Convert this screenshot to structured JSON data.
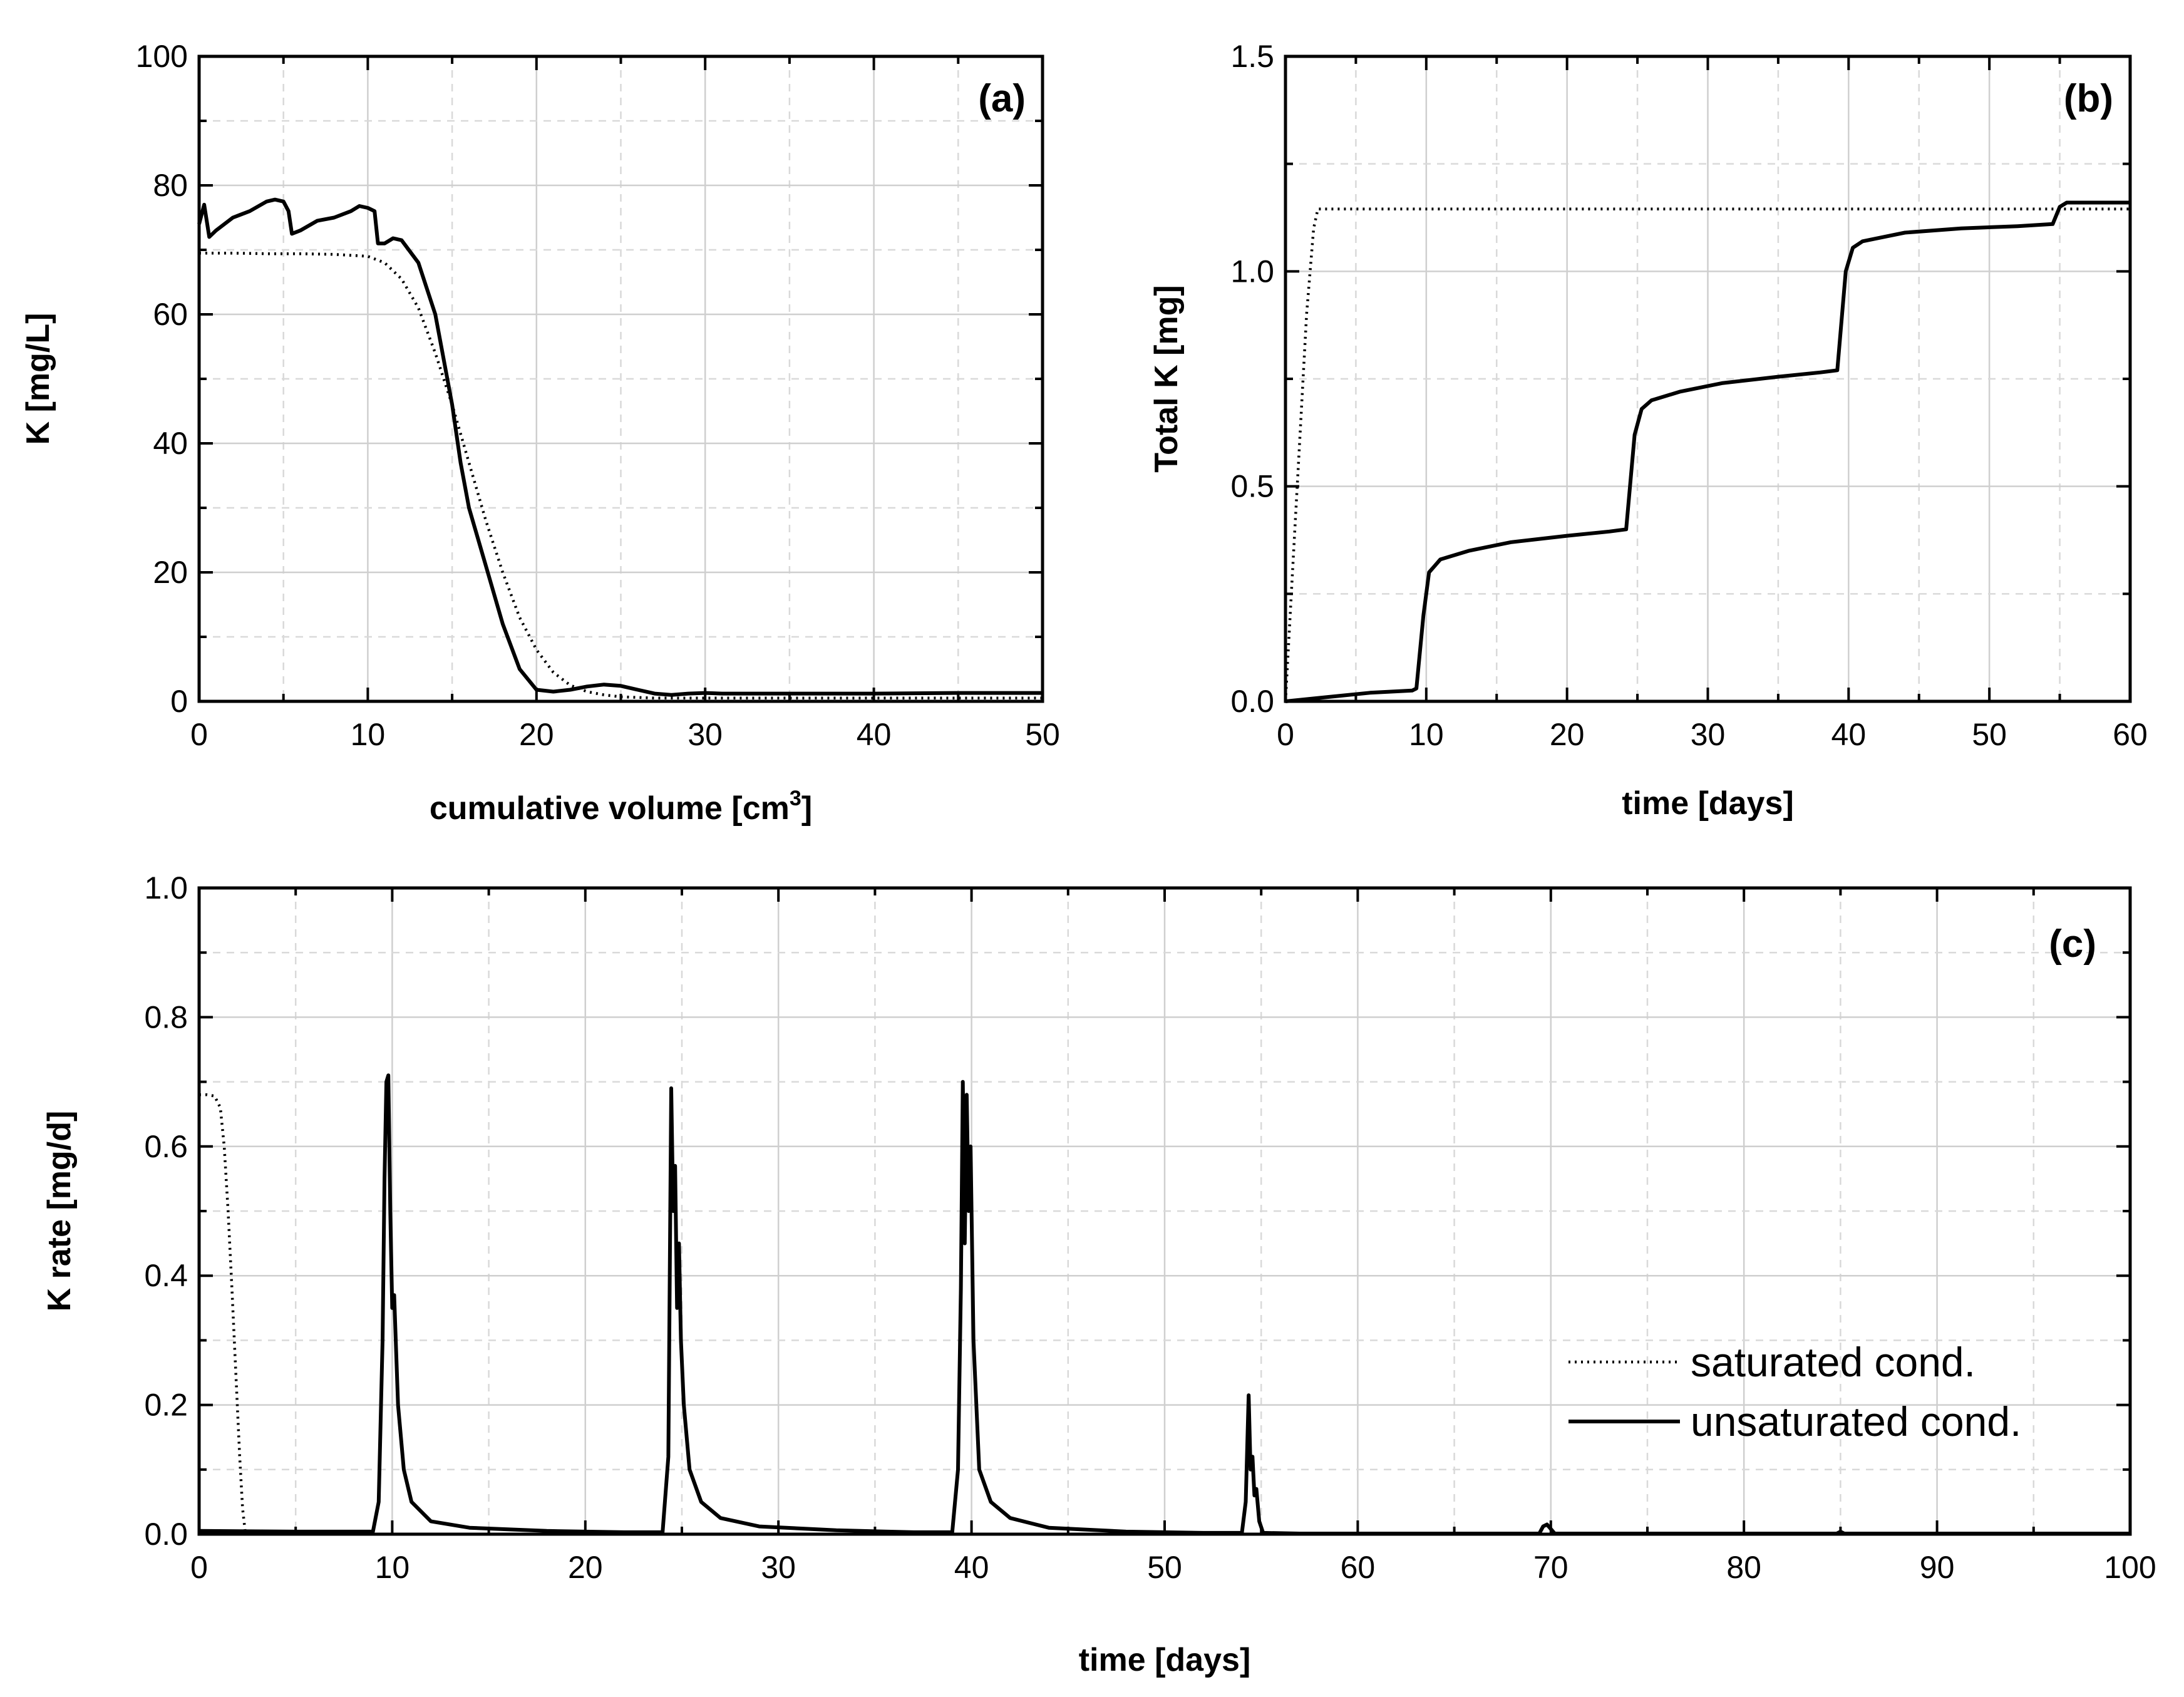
{
  "chart_data": [
    {
      "id": "a",
      "type": "line",
      "panel_label": "(a)",
      "title": "",
      "xlabel": "cumulative volume [cm",
      "xlabel_superscript": "3",
      "xlabel_suffix": "]",
      "ylabel": "K [mg/L]",
      "xlim": [
        0,
        50
      ],
      "ylim": [
        0,
        100
      ],
      "xticks": [
        0,
        10,
        20,
        30,
        40,
        50
      ],
      "yticks": [
        0,
        20,
        40,
        60,
        80,
        100
      ],
      "grid": true,
      "series": [
        {
          "name": "saturated cond.",
          "style": "dotted",
          "x": [
            0,
            2,
            4,
            6,
            8,
            10,
            11,
            12,
            13,
            14,
            15,
            16,
            17,
            18,
            19,
            20,
            21,
            22,
            23,
            24,
            25,
            26,
            27,
            28,
            30,
            35,
            40,
            45,
            50
          ],
          "y": [
            69.5,
            69.5,
            69.4,
            69.4,
            69.3,
            69,
            68,
            65.5,
            61,
            54,
            46,
            37,
            28,
            20,
            13,
            8,
            4.5,
            2.5,
            1.5,
            1,
            0.7,
            0.6,
            0.5,
            0.5,
            0.5,
            0.5,
            0.5,
            0.5,
            0.5
          ]
        },
        {
          "name": "unsaturated cond.",
          "style": "solid",
          "x": [
            0,
            0.3,
            0.6,
            1,
            2,
            3,
            4,
            4.5,
            5,
            5.3,
            5.5,
            6,
            7,
            8,
            9,
            9.5,
            10,
            10.4,
            10.6,
            11,
            11.5,
            12,
            13,
            14,
            15,
            15.5,
            16,
            17,
            18,
            19,
            20,
            21,
            22,
            23,
            24,
            25,
            26,
            27,
            28,
            29,
            30,
            31,
            35,
            40,
            45,
            50
          ],
          "y": [
            74,
            77,
            72,
            73,
            75,
            76,
            77.5,
            77.8,
            77.5,
            76,
            72.5,
            73,
            74.5,
            75,
            76,
            76.8,
            76.5,
            76,
            71,
            71,
            71.8,
            71.5,
            68,
            60,
            46,
            37,
            30,
            21,
            12,
            5,
            1.8,
            1.5,
            1.8,
            2.3,
            2.6,
            2.4,
            1.8,
            1.2,
            1,
            1.2,
            1.3,
            1.2,
            1.2,
            1.2,
            1.3,
            1.3
          ]
        }
      ]
    },
    {
      "id": "b",
      "type": "line",
      "panel_label": "(b)",
      "title": "",
      "xlabel": "time [days]",
      "ylabel": "Total K [mg]",
      "xlim": [
        0,
        60
      ],
      "ylim": [
        0,
        1.5
      ],
      "xticks": [
        0,
        10,
        20,
        30,
        40,
        50,
        60
      ],
      "yticks": [
        0.0,
        0.5,
        1.0,
        1.5
      ],
      "ytick_labels": [
        "0.0",
        "0.5",
        "1.0",
        "1.5"
      ],
      "grid": true,
      "series": [
        {
          "name": "saturated cond.",
          "style": "dotted",
          "x": [
            0,
            0.5,
            1,
            1.5,
            2,
            2.3,
            3,
            10,
            20,
            30,
            40,
            50,
            60
          ],
          "y": [
            0,
            0.3,
            0.6,
            0.9,
            1.1,
            1.145,
            1.145,
            1.145,
            1.145,
            1.145,
            1.145,
            1.145,
            1.145
          ]
        },
        {
          "name": "unsaturated cond.",
          "style": "solid",
          "x": [
            0,
            3,
            6,
            9,
            9.3,
            9.8,
            10.2,
            11,
            13,
            16,
            20,
            23,
            24.2,
            24.8,
            25.3,
            26,
            28,
            31,
            35,
            38,
            39.2,
            39.8,
            40.3,
            41,
            44,
            48,
            52,
            54.5,
            55,
            55.5,
            57,
            60
          ],
          "y": [
            0,
            0.01,
            0.02,
            0.025,
            0.03,
            0.2,
            0.3,
            0.33,
            0.35,
            0.37,
            0.385,
            0.395,
            0.4,
            0.62,
            0.68,
            0.7,
            0.72,
            0.74,
            0.755,
            0.765,
            0.77,
            1.0,
            1.055,
            1.07,
            1.09,
            1.1,
            1.105,
            1.11,
            1.15,
            1.16,
            1.16,
            1.16
          ]
        }
      ]
    },
    {
      "id": "c",
      "type": "line",
      "panel_label": "(c)",
      "title": "",
      "xlabel": "time [days]",
      "ylabel": "K rate [mg/d]",
      "xlim": [
        0,
        100
      ],
      "ylim": [
        0,
        1.0
      ],
      "xticks": [
        0,
        10,
        20,
        30,
        40,
        50,
        60,
        70,
        80,
        90,
        100
      ],
      "yticks": [
        0.0,
        0.2,
        0.4,
        0.6,
        0.8,
        1.0
      ],
      "ytick_labels": [
        "0.0",
        "0.2",
        "0.4",
        "0.6",
        "0.8",
        "1.0"
      ],
      "grid": true,
      "legend": {
        "position": "lower-right",
        "entries": [
          "saturated cond.",
          "unsaturated cond."
        ]
      },
      "series": [
        {
          "name": "saturated cond.",
          "style": "dotted",
          "x": [
            0,
            0.4,
            0.8,
            1.1,
            1.3,
            1.5,
            1.7,
            1.9,
            2.1,
            2.25,
            2.4,
            3,
            100
          ],
          "y": [
            0.68,
            0.68,
            0.678,
            0.66,
            0.6,
            0.5,
            0.38,
            0.25,
            0.12,
            0.04,
            0,
            0,
            0
          ]
        },
        {
          "name": "unsaturated cond.",
          "style": "solid",
          "x": [
            0,
            5,
            9,
            9.3,
            9.5,
            9.6,
            9.7,
            9.8,
            9.9,
            10.0,
            10.1,
            10.3,
            10.6,
            11,
            12,
            14,
            18,
            22,
            24,
            24.3,
            24.45,
            24.55,
            24.65,
            24.75,
            24.85,
            24.95,
            25.1,
            25.4,
            26,
            27,
            29,
            33,
            37,
            39,
            39.3,
            39.45,
            39.55,
            39.65,
            39.75,
            39.85,
            39.95,
            40.1,
            40.4,
            41,
            42,
            44,
            48,
            52,
            54,
            54.2,
            54.35,
            54.45,
            54.55,
            54.65,
            54.75,
            54.9,
            55.1,
            57,
            62,
            69.4,
            69.6,
            69.8,
            70,
            70.2,
            75,
            84.8,
            85,
            85.2,
            90,
            100
          ],
          "y": [
            0.005,
            0.004,
            0.004,
            0.05,
            0.3,
            0.55,
            0.7,
            0.71,
            0.5,
            0.35,
            0.37,
            0.2,
            0.1,
            0.05,
            0.02,
            0.01,
            0.005,
            0.003,
            0.003,
            0.12,
            0.69,
            0.5,
            0.57,
            0.35,
            0.45,
            0.3,
            0.2,
            0.1,
            0.05,
            0.025,
            0.012,
            0.006,
            0.003,
            0.003,
            0.1,
            0.38,
            0.7,
            0.45,
            0.68,
            0.5,
            0.6,
            0.3,
            0.1,
            0.05,
            0.025,
            0.01,
            0.004,
            0.002,
            0.002,
            0.05,
            0.215,
            0.1,
            0.12,
            0.06,
            0.07,
            0.02,
            0.002,
            0.001,
            0.001,
            0.001,
            0.012,
            0.015,
            0.008,
            0.001,
            0.001,
            0.001,
            0.004,
            0.001,
            0.001,
            0.001
          ]
        }
      ]
    }
  ]
}
